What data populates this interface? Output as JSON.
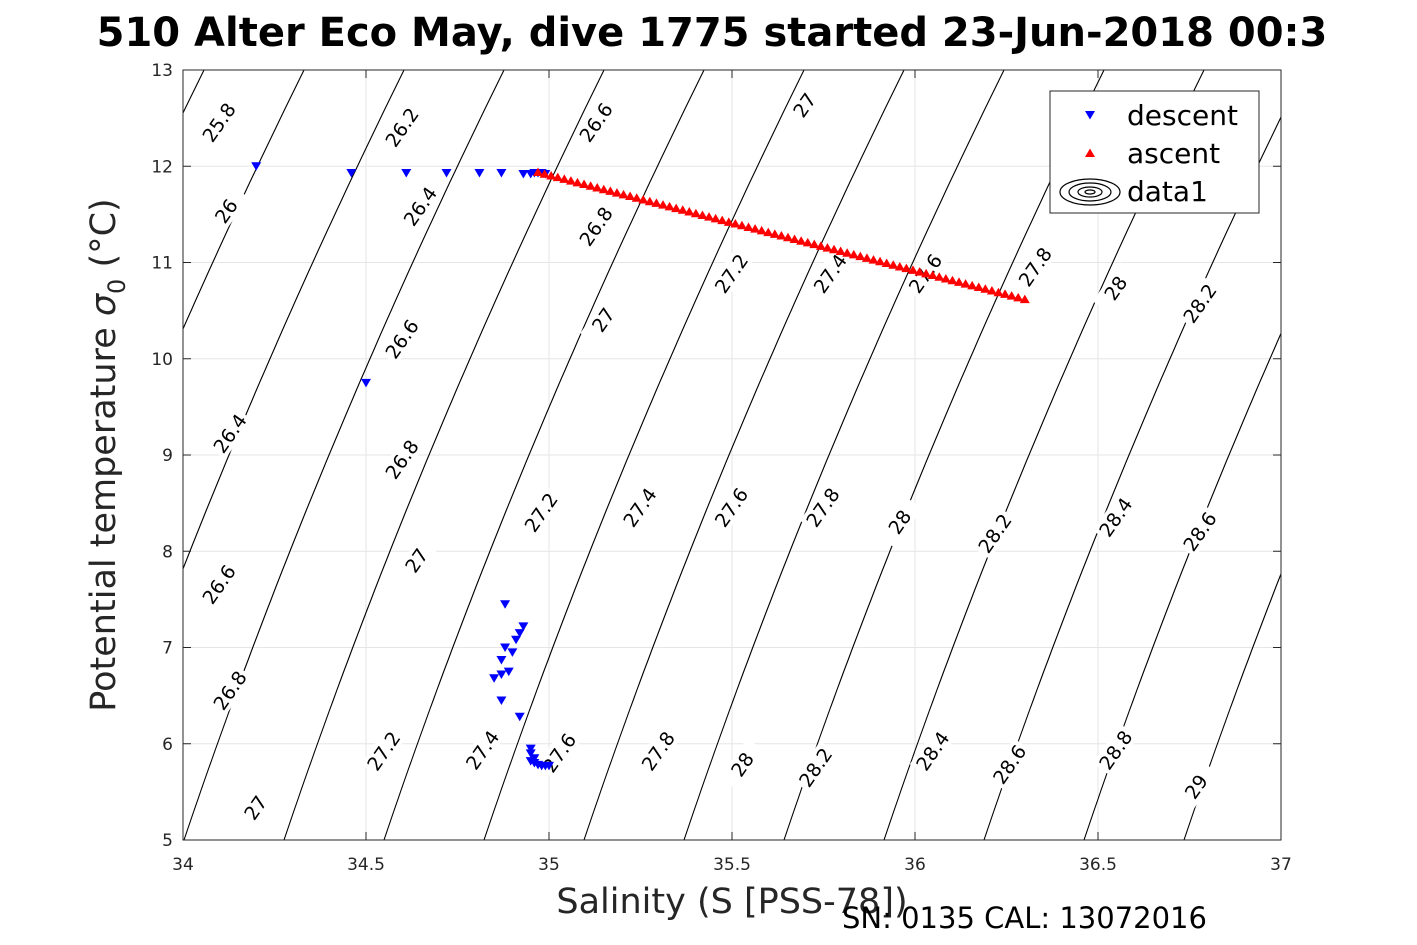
{
  "chart_data": {
    "type": "scatter",
    "title": "510 Alter Eco May, dive 1775 started 23-Jun-2018 00:3",
    "xlabel": "Salinity (S [PSS-78])",
    "ylabel_text": "Potential temperature ",
    "ylabel_sigma": "σ",
    "ylabel_sub": "0",
    "ylabel_unit": " (°C)",
    "xlim": [
      34,
      37
    ],
    "ylim": [
      5,
      13
    ],
    "x_ticks": [
      "34",
      "34.5",
      "35",
      "35.5",
      "36",
      "36.5",
      "37"
    ],
    "y_ticks": [
      "5",
      "6",
      "7",
      "8",
      "9",
      "10",
      "11",
      "12",
      "13"
    ],
    "grid": true,
    "legend_position": "top-right",
    "series": [
      {
        "name": "descent",
        "color": "#0000ff",
        "marker": "triangle-down",
        "points": [
          [
            34.2,
            12.0
          ],
          [
            34.46,
            11.93
          ],
          [
            34.61,
            11.93
          ],
          [
            34.72,
            11.93
          ],
          [
            34.81,
            11.93
          ],
          [
            34.87,
            11.93
          ],
          [
            34.93,
            11.92
          ],
          [
            34.95,
            11.92
          ],
          [
            34.96,
            11.93
          ],
          [
            34.97,
            11.93
          ],
          [
            34.98,
            11.93
          ],
          [
            34.99,
            11.92
          ],
          [
            34.5,
            9.75
          ],
          [
            34.88,
            7.45
          ],
          [
            34.93,
            7.22
          ],
          [
            34.92,
            7.15
          ],
          [
            34.91,
            7.08
          ],
          [
            34.88,
            7.0
          ],
          [
            34.9,
            6.95
          ],
          [
            34.87,
            6.87
          ],
          [
            34.89,
            6.75
          ],
          [
            34.87,
            6.72
          ],
          [
            34.85,
            6.68
          ],
          [
            34.87,
            6.45
          ],
          [
            34.92,
            6.28
          ],
          [
            34.95,
            5.95
          ],
          [
            34.95,
            5.9
          ],
          [
            34.96,
            5.85
          ],
          [
            34.95,
            5.82
          ],
          [
            34.96,
            5.8
          ],
          [
            34.97,
            5.78
          ],
          [
            34.98,
            5.77
          ],
          [
            34.99,
            5.77
          ],
          [
            35.0,
            5.77
          ]
        ]
      },
      {
        "name": "ascent",
        "color": "#ff0000",
        "marker": "triangle-up",
        "from": [
          34.97,
          11.94
        ],
        "to": [
          36.3,
          10.62
        ],
        "count": 75
      },
      {
        "name": "data1",
        "color": "#000000",
        "marker": "contour"
      }
    ],
    "contour_labels": [
      [
        "25.8",
        34.1,
        12.45
      ],
      [
        "26",
        34.12,
        11.53
      ],
      [
        "26.2",
        34.6,
        12.4
      ],
      [
        "26.4",
        34.65,
        11.58
      ],
      [
        "26.6",
        35.13,
        12.45
      ],
      [
        "26.8",
        35.13,
        11.37
      ],
      [
        "27",
        35.7,
        12.63
      ],
      [
        "27.2",
        35.5,
        10.88
      ],
      [
        "27.4",
        35.77,
        10.88
      ],
      [
        "27.6",
        36.03,
        10.88
      ],
      [
        "27.8",
        36.33,
        10.95
      ],
      [
        "28",
        36.55,
        10.73
      ],
      [
        "28.2",
        36.78,
        10.57
      ],
      [
        "27",
        35.15,
        10.4
      ],
      [
        "26.6",
        34.6,
        10.2
      ],
      [
        "26.4",
        34.13,
        9.22
      ],
      [
        "26.8",
        34.6,
        8.95
      ],
      [
        "27.2",
        34.98,
        8.4
      ],
      [
        "27.4",
        35.25,
        8.45
      ],
      [
        "27.6",
        35.5,
        8.45
      ],
      [
        "27.8",
        35.75,
        8.45
      ],
      [
        "28",
        35.96,
        8.3
      ],
      [
        "28.2",
        36.22,
        8.18
      ],
      [
        "28.4",
        36.55,
        8.35
      ],
      [
        "28.6",
        36.78,
        8.2
      ],
      [
        "27",
        34.64,
        7.9
      ],
      [
        "26.6",
        34.1,
        7.65
      ],
      [
        "26.8",
        34.13,
        6.55
      ],
      [
        "27.2",
        34.55,
        5.92
      ],
      [
        "27.4",
        34.82,
        5.93
      ],
      [
        "27.6",
        35.03,
        5.9
      ],
      [
        "27.8",
        35.3,
        5.92
      ],
      [
        "28",
        35.53,
        5.78
      ],
      [
        "28.2",
        35.73,
        5.75
      ],
      [
        "28.4",
        36.05,
        5.92
      ],
      [
        "28.6",
        36.26,
        5.78
      ],
      [
        "28.8",
        36.55,
        5.93
      ],
      [
        "29",
        36.77,
        5.55
      ],
      [
        "27",
        34.2,
        5.33
      ]
    ]
  },
  "footer": {
    "serial": "SN: 0135  CAL: 13072016"
  }
}
